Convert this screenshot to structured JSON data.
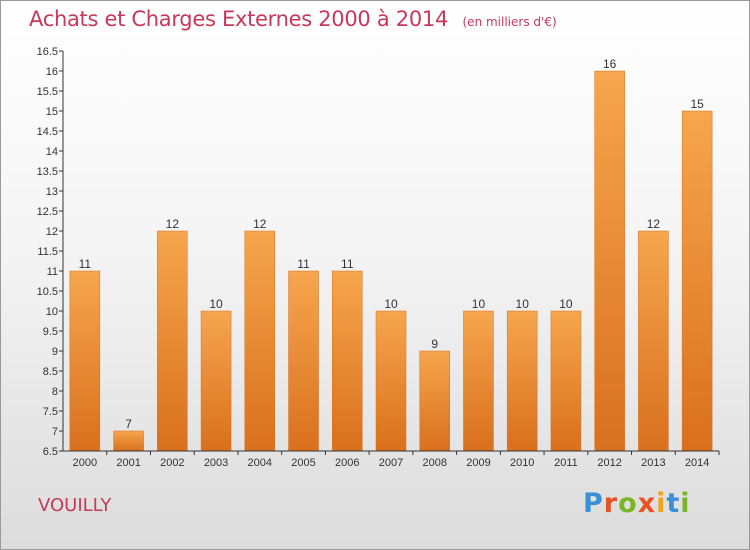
{
  "header": {
    "title": "Achats et Charges Externes 2000 à 2014",
    "subtitle": "(en milliers d'€)"
  },
  "footer": {
    "commune": "VOUILLY",
    "logo_text": "Proxiti"
  },
  "colors": {
    "title": "#c8385a",
    "bar_top": "#f6a64e",
    "bar_bottom": "#d9701d",
    "axis": "#333333",
    "logo_letters": [
      "#3a8fd6",
      "#e8531f",
      "#7cb428",
      "#e8531f",
      "#f2a31b",
      "#3a8fd6",
      "#7cb428"
    ]
  },
  "chart_data": {
    "type": "bar",
    "categories": [
      "2000",
      "2001",
      "2002",
      "2003",
      "2004",
      "2005",
      "2006",
      "2007",
      "2008",
      "2009",
      "2010",
      "2011",
      "2012",
      "2013",
      "2014"
    ],
    "values": [
      11,
      7,
      12,
      10,
      12,
      11,
      11,
      10,
      9,
      10,
      10,
      10,
      16,
      12,
      15
    ],
    "data_labels": [
      "11",
      "7",
      "12",
      "10",
      "12",
      "11",
      "11",
      "10",
      "9",
      "10",
      "10",
      "10",
      "16",
      "12",
      "15"
    ],
    "ylim": [
      6.5,
      16.5
    ],
    "yticks": [
      "6.5",
      "7",
      "7.5",
      "8",
      "8.5",
      "9",
      "9.5",
      "10",
      "10.5",
      "11",
      "11.5",
      "12",
      "12.5",
      "13",
      "13.5",
      "14",
      "14.5",
      "15",
      "15.5",
      "16",
      "16.5"
    ],
    "grid": false,
    "legend": "none"
  }
}
